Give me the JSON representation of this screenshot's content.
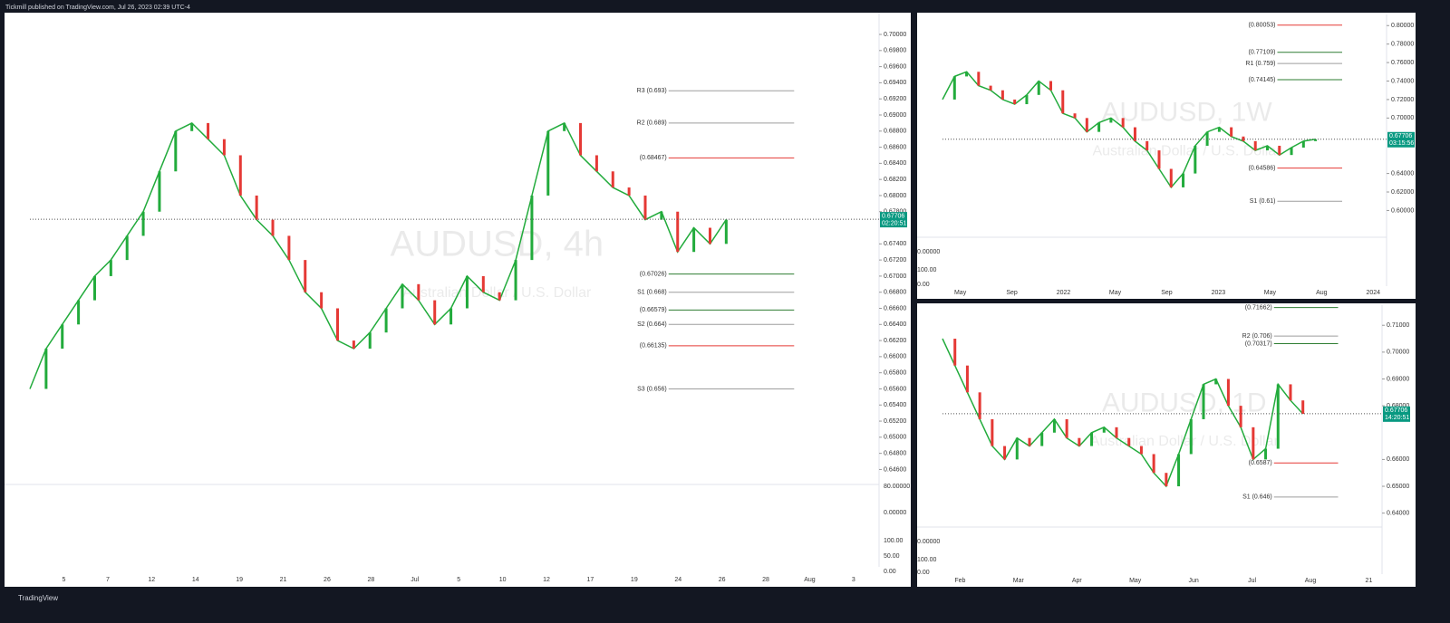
{
  "header": "Tickmill published on TradingView.com, Jul 26, 2023 02:39 UTC-4",
  "footer": "TradingView",
  "chart_data": [
    {
      "type": "line",
      "title": "AUDUSD, 4h",
      "subtitle": "Australian Dollar / U.S. Dollar",
      "color": "#22ab3c",
      "values": [
        0.656,
        0.661,
        0.664,
        0.667,
        0.67,
        0.672,
        0.675,
        0.678,
        0.683,
        0.688,
        0.689,
        0.687,
        0.685,
        0.68,
        0.677,
        0.675,
        0.672,
        0.668,
        0.666,
        0.662,
        0.661,
        0.663,
        0.666,
        0.669,
        0.667,
        0.664,
        0.666,
        0.67,
        0.668,
        0.667,
        0.672,
        0.68,
        0.688,
        0.689,
        0.685,
        0.683,
        0.681,
        0.68,
        0.677,
        0.678,
        0.673,
        0.676,
        0.674,
        0.677
      ],
      "x_tick_labels": [
        "5",
        "7",
        "12",
        "14",
        "19",
        "21",
        "26",
        "28",
        "Jul",
        "5",
        "10",
        "12",
        "17",
        "19",
        "24",
        "26",
        "28",
        "Aug",
        "3"
      ],
      "ylim": [
        0.6447,
        0.7027
      ],
      "yticks": [
        {
          "value": 0.7,
          "label": "0.70000"
        },
        {
          "value": 0.698,
          "label": "0.69800"
        },
        {
          "value": 0.696,
          "label": "0.69600"
        },
        {
          "value": 0.694,
          "label": "0.69400"
        },
        {
          "value": 0.692,
          "label": "0.69200"
        },
        {
          "value": 0.69,
          "label": "0.69000"
        },
        {
          "value": 0.688,
          "label": "0.68800"
        },
        {
          "value": 0.686,
          "label": "0.68600"
        },
        {
          "value": 0.684,
          "label": "0.68400"
        },
        {
          "value": 0.682,
          "label": "0.68200"
        },
        {
          "value": 0.68,
          "label": "0.68000"
        },
        {
          "value": 0.678,
          "label": "0.67800"
        },
        {
          "value": 0.674,
          "label": "0.67400"
        },
        {
          "value": 0.672,
          "label": "0.67200"
        },
        {
          "value": 0.67,
          "label": "0.67000"
        },
        {
          "value": 0.668,
          "label": "0.66800"
        },
        {
          "value": 0.666,
          "label": "0.66600"
        },
        {
          "value": 0.664,
          "label": "0.66400"
        },
        {
          "value": 0.662,
          "label": "0.66200"
        },
        {
          "value": 0.66,
          "label": "0.66000"
        },
        {
          "value": 0.658,
          "label": "0.65800"
        },
        {
          "value": 0.656,
          "label": "0.65600"
        },
        {
          "value": 0.654,
          "label": "0.65400"
        },
        {
          "value": 0.652,
          "label": "0.65200"
        },
        {
          "value": 0.65,
          "label": "0.65000"
        },
        {
          "value": 0.648,
          "label": "0.64800"
        },
        {
          "value": 0.646,
          "label": "0.64600"
        }
      ],
      "annotations": [
        {
          "text": "R3 (0.693)",
          "value": 0.693,
          "color": "#9e9e9e"
        },
        {
          "text": "R2 (0.689)",
          "value": 0.689,
          "color": "#9e9e9e"
        },
        {
          "text": "(0.68467)",
          "value": 0.68467,
          "color": "#e53935"
        },
        {
          "text": "(0.67026)",
          "value": 0.67026,
          "color": "#2e7d32"
        },
        {
          "text": "S1 (0.668)",
          "value": 0.668,
          "color": "#9e9e9e"
        },
        {
          "text": "(0.66579)",
          "value": 0.66579,
          "color": "#2e7d32"
        },
        {
          "text": "S2 (0.664)",
          "value": 0.664,
          "color": "#9e9e9e"
        },
        {
          "text": "(0.66135)",
          "value": 0.66135,
          "color": "#e53935"
        },
        {
          "text": "S3 (0.656)",
          "value": 0.656,
          "color": "#9e9e9e"
        }
      ],
      "last_price": 0.67706,
      "countdown": "02:20:51",
      "indicator_labels": [
        "80.00000",
        "0.00000",
        "100.00",
        "50.00",
        "0.00"
      ]
    },
    {
      "type": "line",
      "title": "AUDUSD, 1W",
      "subtitle": "Australian Dollar / U.S. Dollar",
      "color": "#22ab3c",
      "values": [
        0.72,
        0.745,
        0.75,
        0.735,
        0.73,
        0.72,
        0.715,
        0.725,
        0.74,
        0.73,
        0.705,
        0.7,
        0.685,
        0.695,
        0.7,
        0.69,
        0.675,
        0.665,
        0.645,
        0.625,
        0.64,
        0.67,
        0.685,
        0.69,
        0.68,
        0.675,
        0.665,
        0.67,
        0.66,
        0.668,
        0.675,
        0.677
      ],
      "x_tick_labels": [
        "May",
        "Sep",
        "2022",
        "May",
        "Sep",
        "2023",
        "May",
        "Aug",
        "2024"
      ],
      "ylim": [
        0.573,
        0.812
      ],
      "yticks": [
        {
          "value": 0.8,
          "label": "0.80000"
        },
        {
          "value": 0.78,
          "label": "0.78000"
        },
        {
          "value": 0.76,
          "label": "0.76000"
        },
        {
          "value": 0.74,
          "label": "0.74000"
        },
        {
          "value": 0.72,
          "label": "0.72000"
        },
        {
          "value": 0.7,
          "label": "0.70000"
        },
        {
          "value": 0.64,
          "label": "0.64000"
        },
        {
          "value": 0.62,
          "label": "0.62000"
        },
        {
          "value": 0.6,
          "label": "0.60000"
        }
      ],
      "annotations": [
        {
          "text": "(0.80053)",
          "value": 0.80053,
          "color": "#e53935"
        },
        {
          "text": "(0.77109)",
          "value": 0.77109,
          "color": "#2e7d32"
        },
        {
          "text": "R1 (0.759)",
          "value": 0.759,
          "color": "#9e9e9e"
        },
        {
          "text": "(0.74145)",
          "value": 0.74145,
          "color": "#2e7d32"
        },
        {
          "text": "(0.64586)",
          "value": 0.64586,
          "color": "#e53935"
        },
        {
          "text": "S1 (0.61)",
          "value": 0.61,
          "color": "#9e9e9e"
        }
      ],
      "last_price": 0.67706,
      "countdown": "03:15:56",
      "indicator_labels": [
        "0.00000",
        "100.00",
        "0.00"
      ]
    },
    {
      "type": "line",
      "title": "AUDUSD, 1D",
      "subtitle": "Australian Dollar / U.S. Dollar",
      "color": "#22ab3c",
      "values": [
        0.705,
        0.695,
        0.685,
        0.675,
        0.665,
        0.66,
        0.668,
        0.665,
        0.67,
        0.675,
        0.668,
        0.665,
        0.67,
        0.672,
        0.668,
        0.665,
        0.662,
        0.655,
        0.65,
        0.662,
        0.675,
        0.688,
        0.69,
        0.68,
        0.672,
        0.66,
        0.664,
        0.688,
        0.682,
        0.677
      ],
      "x_tick_labels": [
        "Feb",
        "Mar",
        "Apr",
        "May",
        "Jun",
        "Jul",
        "Aug",
        "21"
      ],
      "ylim": [
        0.6355,
        0.7175
      ],
      "yticks": [
        {
          "value": 0.71,
          "label": "0.71000"
        },
        {
          "value": 0.7,
          "label": "0.70000"
        },
        {
          "value": 0.69,
          "label": "0.69000"
        },
        {
          "value": 0.68,
          "label": "0.68000"
        },
        {
          "value": 0.66,
          "label": "0.66000"
        },
        {
          "value": 0.65,
          "label": "0.65000"
        },
        {
          "value": 0.64,
          "label": "0.64000"
        }
      ],
      "annotations": [
        {
          "text": "(0.71662)",
          "value": 0.71662,
          "color": "#2e7d32"
        },
        {
          "text": "R2 (0.706)",
          "value": 0.706,
          "color": "#9e9e9e"
        },
        {
          "text": "(0.70317)",
          "value": 0.70317,
          "color": "#2e7d32"
        },
        {
          "text": "(0.6587)",
          "value": 0.6587,
          "color": "#e53935"
        },
        {
          "text": "S1 (0.646)",
          "value": 0.646,
          "color": "#9e9e9e"
        }
      ],
      "last_price": 0.67706,
      "countdown": "14:20:51",
      "indicator_labels": [
        "0.00000",
        "100.00",
        "0.00"
      ]
    }
  ]
}
